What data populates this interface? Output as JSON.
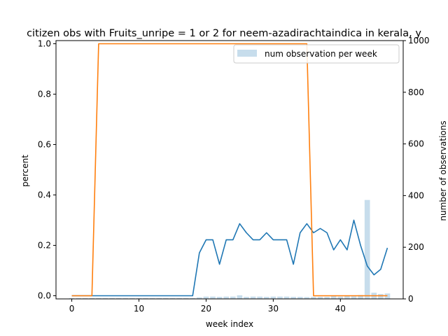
{
  "chart_data": {
    "type": "line",
    "title": "citizen obs with Fruits_unripe = 1 or 2 for neem-azadirachtaindica in kerala, y",
    "xlabel": "week index",
    "ylabel": "percent",
    "y2label": "number of observations",
    "xlim": [
      -2.35,
      49.35
    ],
    "ylim": [
      -0.0125,
      1.0125
    ],
    "y2lim": [
      0,
      1000
    ],
    "xticks": [
      0,
      10,
      20,
      30,
      40
    ],
    "yticks": [
      0.0,
      0.2,
      0.4,
      0.6,
      0.8,
      1.0
    ],
    "y2ticks": [
      0,
      200,
      400,
      600,
      800,
      1000
    ],
    "legend": {
      "placement": "top-right",
      "entries": [
        "num observation per week"
      ]
    },
    "colors": {
      "line1": "#1f77b4",
      "line2": "#ff7f0e",
      "bars": "#1f77b4"
    },
    "series": [
      {
        "name": "",
        "axis": "left",
        "color": "#1f77b4",
        "x": [
          0,
          1,
          2,
          3,
          4,
          5,
          6,
          7,
          8,
          9,
          10,
          11,
          12,
          13,
          14,
          15,
          16,
          17,
          18,
          19,
          20,
          21,
          22,
          23,
          24,
          25,
          26,
          27,
          28,
          29,
          30,
          31,
          32,
          33,
          34,
          35,
          36,
          37,
          38,
          39,
          40,
          41,
          42,
          43,
          44,
          45,
          46,
          47
        ],
        "values": [
          0,
          0,
          0,
          0,
          0,
          0,
          0,
          0,
          0,
          0,
          0,
          0,
          0,
          0,
          0,
          0,
          0,
          0,
          0,
          0.17,
          0.222,
          0.222,
          0.125,
          0.222,
          0.222,
          0.286,
          0.25,
          0.222,
          0.222,
          0.25,
          0.222,
          0.222,
          0.222,
          0.125,
          0.25,
          0.286,
          0.25,
          0.267,
          0.25,
          0.182,
          0.222,
          0.182,
          0.3,
          0.2,
          0.118,
          0.083,
          0.105,
          0.19
        ]
      },
      {
        "name": "",
        "axis": "left",
        "color": "#ff7f0e",
        "x": [
          0,
          1,
          2,
          3,
          4,
          5,
          6,
          7,
          8,
          9,
          10,
          11,
          12,
          13,
          14,
          15,
          16,
          17,
          18,
          19,
          20,
          21,
          22,
          23,
          24,
          25,
          26,
          27,
          28,
          29,
          30,
          31,
          32,
          33,
          34,
          35,
          36,
          37,
          38,
          39,
          40,
          41,
          42,
          43,
          44,
          45,
          46,
          47
        ],
        "values": [
          0,
          0,
          0,
          0,
          1,
          1,
          1,
          1,
          1,
          1,
          1,
          1,
          1,
          1,
          1,
          1,
          1,
          1,
          1,
          1,
          1,
          1,
          1,
          1,
          1,
          1,
          1,
          1,
          1,
          1,
          1,
          1,
          1,
          1,
          1,
          1,
          0,
          0,
          0,
          0,
          0,
          0,
          0,
          0,
          0,
          0,
          0,
          0
        ]
      },
      {
        "name": "num observation per week",
        "axis": "right",
        "type": "bar",
        "color": "#1f77b4",
        "x": [
          0,
          1,
          2,
          3,
          4,
          5,
          6,
          7,
          8,
          9,
          10,
          11,
          12,
          13,
          14,
          15,
          16,
          17,
          18,
          19,
          20,
          21,
          22,
          23,
          24,
          25,
          26,
          27,
          28,
          29,
          30,
          31,
          32,
          33,
          34,
          35,
          36,
          37,
          38,
          39,
          40,
          41,
          42,
          43,
          44,
          45,
          46,
          47
        ],
        "values": [
          3,
          3,
          3,
          3,
          3,
          3,
          3,
          3,
          3,
          3,
          3,
          3,
          3,
          3,
          3,
          3,
          3,
          3,
          3,
          6,
          9,
          9,
          8,
          9,
          9,
          14,
          8,
          9,
          9,
          8,
          9,
          9,
          9,
          8,
          8,
          7,
          8,
          8,
          8,
          11,
          9,
          11,
          10,
          15,
          383,
          24,
          19,
          21
        ]
      }
    ]
  }
}
